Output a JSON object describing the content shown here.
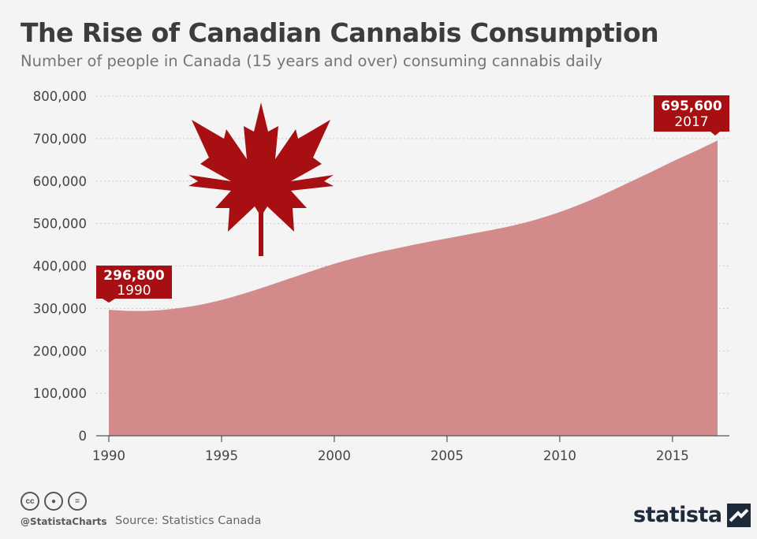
{
  "header": {
    "title": "The Rise of Canadian Cannabis Consumption",
    "subtitle": "Number of people in Canada (15 years and over) consuming cannabis daily"
  },
  "footer": {
    "handle": "@StatistaCharts",
    "source": "Source: Statistics Canada",
    "brand": "statista",
    "license_icons": [
      "cc-icon",
      "attribution-icon",
      "no-derivatives-icon"
    ]
  },
  "colors": {
    "area": "#d38a8a",
    "accent": "#a80f12",
    "background": "#f4f4f4"
  },
  "callouts": {
    "start": {
      "value": "296,800",
      "year": "1990"
    },
    "end": {
      "value": "695,600",
      "year": "2017"
    }
  },
  "chart_data": {
    "type": "area",
    "title": "The Rise of Canadian Cannabis Consumption",
    "subtitle": "Number of people in Canada (15 years and over) consuming cannabis daily",
    "xlabel": "",
    "ylabel": "",
    "x": [
      1990,
      1991,
      1992,
      1993,
      1994,
      1995,
      1996,
      1997,
      1998,
      1999,
      2000,
      2001,
      2002,
      2003,
      2004,
      2005,
      2006,
      2007,
      2008,
      2009,
      2010,
      2011,
      2012,
      2013,
      2014,
      2015,
      2016,
      2017
    ],
    "series": [
      {
        "values": [
          296800,
          294000,
          295000,
          300000,
          308000,
          320000,
          335000,
          352000,
          370000,
          388000,
          405000,
          420000,
          433000,
          444000,
          455000,
          465000,
          475000,
          485000,
          496000,
          510000,
          527000,
          547000,
          570000,
          595000,
          620000,
          646000,
          670000,
          695600
        ]
      }
    ],
    "xlim": [
      1990,
      2017
    ],
    "ylim": [
      0,
      800000
    ],
    "xticks": [
      "1990",
      "1995",
      "2000",
      "2005",
      "2010",
      "2015"
    ],
    "yticks": [
      "0",
      "100,000",
      "200,000",
      "300,000",
      "400,000",
      "500,000",
      "600,000",
      "700,000",
      "800,000"
    ],
    "grid": true,
    "legend": "none"
  }
}
